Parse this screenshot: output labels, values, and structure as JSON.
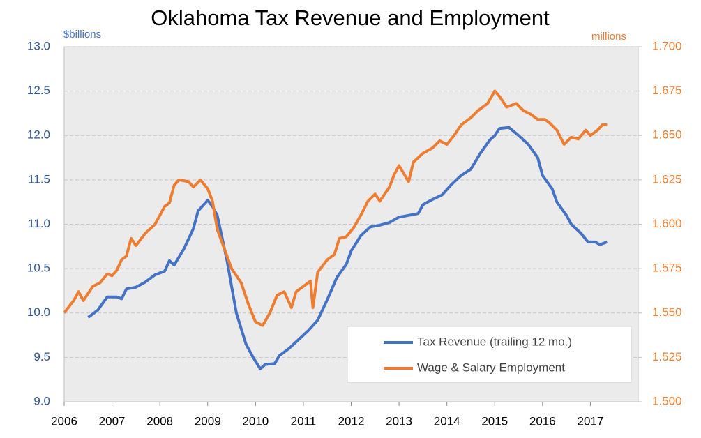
{
  "chart_data": {
    "type": "line",
    "title": "Oklahoma Tax Revenue and Employment",
    "y_label": "$billions",
    "y2_label": "millions",
    "xlim": [
      2006,
      2018
    ],
    "xticks": [
      2006,
      2007,
      2008,
      2009,
      2010,
      2011,
      2012,
      2013,
      2014,
      2015,
      2016,
      2017
    ],
    "ylim": [
      9,
      13
    ],
    "yticks": [
      {
        "value": 9,
        "label": "9.0"
      },
      {
        "value": 9.5,
        "label": "9.5"
      },
      {
        "value": 10,
        "label": "10.0"
      },
      {
        "value": 10.5,
        "label": "10.5"
      },
      {
        "value": 11,
        "label": "11.0"
      },
      {
        "value": 11.5,
        "label": "11.5"
      },
      {
        "value": 12,
        "label": "12.0"
      },
      {
        "value": 12.5,
        "label": "12.5"
      },
      {
        "value": 13,
        "label": "13.0"
      }
    ],
    "y2lim": [
      1.5,
      1.7
    ],
    "y2ticks": [
      {
        "value": 1.5,
        "label": "1.500"
      },
      {
        "value": 1.525,
        "label": "1.525"
      },
      {
        "value": 1.55,
        "label": "1.550"
      },
      {
        "value": 1.575,
        "label": "1.575"
      },
      {
        "value": 1.6,
        "label": "1.600"
      },
      {
        "value": 1.625,
        "label": "1.625"
      },
      {
        "value": 1.65,
        "label": "1.650"
      },
      {
        "value": 1.675,
        "label": "1.675"
      },
      {
        "value": 1.7,
        "label": "1.700"
      }
    ],
    "grid": true,
    "legend": "lower right",
    "series": [
      {
        "name": "Tax Revenue (trailing 12 mo.)",
        "color": "#4472c4",
        "x": [
          2006.5,
          2006.7,
          2006.9,
          2007.1,
          2007.2,
          2007.3,
          2007.5,
          2007.7,
          2007.9,
          2008.1,
          2008.2,
          2008.3,
          2008.5,
          2008.7,
          2008.8,
          2009.0,
          2009.1,
          2009.2,
          2009.4,
          2009.6,
          2009.8,
          2009.95,
          2010.1,
          2010.2,
          2010.4,
          2010.5,
          2010.7,
          2010.9,
          2011.1,
          2011.3,
          2011.5,
          2011.7,
          2011.9,
          2012.0,
          2012.2,
          2012.4,
          2012.6,
          2012.8,
          2013.0,
          2013.2,
          2013.4,
          2013.5,
          2013.7,
          2013.9,
          2014.1,
          2014.3,
          2014.5,
          2014.7,
          2014.9,
          2015.0,
          2015.1,
          2015.3,
          2015.5,
          2015.7,
          2015.9,
          2016.0,
          2016.2,
          2016.3,
          2016.5,
          2016.6,
          2016.8,
          2016.95,
          2017.1,
          2017.2,
          2017.35
        ],
        "values": [
          9.95,
          10.03,
          10.18,
          10.18,
          10.16,
          10.27,
          10.29,
          10.35,
          10.43,
          10.47,
          10.59,
          10.54,
          10.72,
          10.95,
          11.15,
          11.27,
          11.2,
          11.1,
          10.6,
          10.0,
          9.65,
          9.5,
          9.37,
          9.42,
          9.43,
          9.52,
          9.6,
          9.7,
          9.8,
          9.92,
          10.15,
          10.4,
          10.55,
          10.7,
          10.87,
          10.97,
          10.99,
          11.02,
          11.08,
          11.1,
          11.12,
          11.22,
          11.28,
          11.33,
          11.45,
          11.55,
          11.62,
          11.8,
          11.95,
          12.0,
          12.08,
          12.09,
          12.0,
          11.9,
          11.75,
          11.55,
          11.4,
          11.25,
          11.1,
          11.0,
          10.9,
          10.8,
          10.8,
          10.77,
          10.8
        ]
      },
      {
        "name": "Wage & Salary Employment",
        "color": "#ed7d31",
        "axis": "y2",
        "x": [
          2006.0,
          2006.2,
          2006.3,
          2006.4,
          2006.6,
          2006.75,
          2006.9,
          2007.0,
          2007.1,
          2007.2,
          2007.3,
          2007.4,
          2007.5,
          2007.7,
          2007.9,
          2008.0,
          2008.1,
          2008.2,
          2008.3,
          2008.4,
          2008.6,
          2008.7,
          2008.85,
          2009.0,
          2009.1,
          2009.2,
          2009.35,
          2009.5,
          2009.7,
          2009.85,
          2010.0,
          2010.15,
          2010.3,
          2010.45,
          2010.6,
          2010.75,
          2010.85,
          2011.0,
          2011.15,
          2011.2,
          2011.3,
          2011.5,
          2011.65,
          2011.75,
          2011.9,
          2012.05,
          2012.2,
          2012.35,
          2012.5,
          2012.6,
          2012.8,
          2012.9,
          2013.0,
          2013.2,
          2013.3,
          2013.5,
          2013.7,
          2013.85,
          2014.0,
          2014.15,
          2014.3,
          2014.5,
          2014.65,
          2014.85,
          2015.0,
          2015.1,
          2015.25,
          2015.45,
          2015.6,
          2015.75,
          2015.9,
          2016.05,
          2016.15,
          2016.3,
          2016.45,
          2016.6,
          2016.75,
          2016.9,
          2017.0,
          2017.15,
          2017.25,
          2017.35
        ],
        "values": [
          1.55,
          1.557,
          1.562,
          1.557,
          1.565,
          1.567,
          1.572,
          1.571,
          1.574,
          1.58,
          1.582,
          1.592,
          1.588,
          1.595,
          1.6,
          1.605,
          1.61,
          1.612,
          1.622,
          1.625,
          1.624,
          1.621,
          1.625,
          1.62,
          1.613,
          1.597,
          1.586,
          1.575,
          1.567,
          1.555,
          1.545,
          1.543,
          1.55,
          1.56,
          1.562,
          1.553,
          1.562,
          1.565,
          1.568,
          1.553,
          1.573,
          1.58,
          1.583,
          1.592,
          1.593,
          1.598,
          1.605,
          1.613,
          1.617,
          1.613,
          1.621,
          1.628,
          1.633,
          1.624,
          1.635,
          1.64,
          1.643,
          1.647,
          1.645,
          1.65,
          1.656,
          1.66,
          1.664,
          1.668,
          1.675,
          1.672,
          1.666,
          1.668,
          1.664,
          1.662,
          1.659,
          1.659,
          1.657,
          1.653,
          1.645,
          1.649,
          1.648,
          1.653,
          1.65,
          1.653,
          1.656,
          1.656
        ]
      }
    ]
  }
}
